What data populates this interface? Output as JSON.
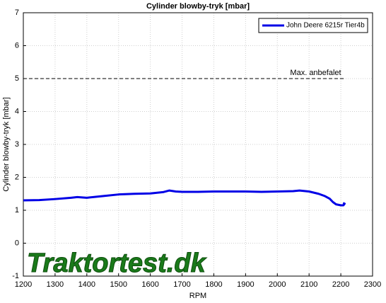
{
  "chart_data": {
    "type": "line",
    "title": "Cylinder blowby-tryk [mbar]",
    "xlabel": "RPM",
    "ylabel": "Cylinder blowby-tryk [mbar]",
    "watermark": "Traktortest.dk",
    "xlim": [
      1200,
      2300
    ],
    "xticks": [
      1200,
      1300,
      1400,
      1500,
      1600,
      1700,
      1800,
      1900,
      2000,
      2100,
      2200,
      2300
    ],
    "ylim": [
      -1,
      7
    ],
    "yticks": [
      -1,
      0,
      1,
      2,
      3,
      4,
      5,
      6,
      7
    ],
    "grid": true,
    "legend": "upper right",
    "reference_line": {
      "y": 5,
      "x": [
        1200,
        2210
      ],
      "label": "Max. anbefalet"
    },
    "series": [
      {
        "name": "John Deere 6215r Tier4b",
        "color": "#0000e6",
        "x": [
          1200,
          1250,
          1300,
          1350,
          1370,
          1400,
          1450,
          1500,
          1550,
          1600,
          1640,
          1660,
          1680,
          1700,
          1750,
          1800,
          1850,
          1900,
          1950,
          2000,
          2050,
          2070,
          2100,
          2130,
          2150,
          2165,
          2175,
          2185,
          2200,
          2208,
          2212,
          2207
        ],
        "values": [
          1.3,
          1.31,
          1.34,
          1.38,
          1.4,
          1.38,
          1.43,
          1.48,
          1.5,
          1.51,
          1.55,
          1.6,
          1.57,
          1.56,
          1.56,
          1.57,
          1.57,
          1.57,
          1.56,
          1.57,
          1.58,
          1.6,
          1.57,
          1.5,
          1.43,
          1.35,
          1.25,
          1.18,
          1.15,
          1.15,
          1.2,
          1.22
        ]
      }
    ]
  }
}
